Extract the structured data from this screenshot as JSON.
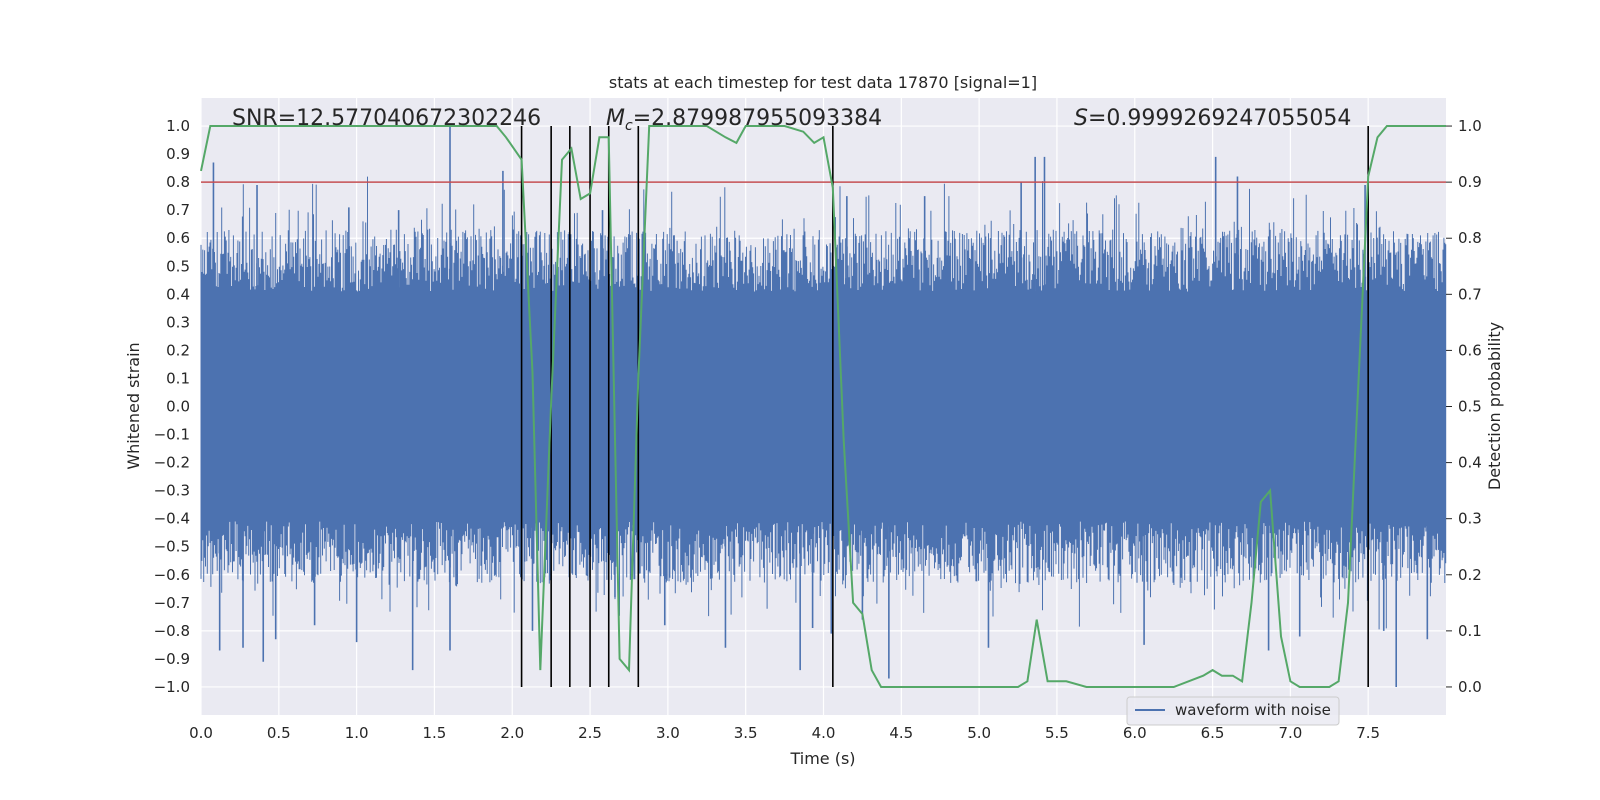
{
  "chart_data": {
    "type": "line",
    "title": "stats at each timestep for test data 17870 [signal=1]",
    "xlabel": "Time (s)",
    "ylabel": "Whitened strain",
    "y2label": "Detection probability",
    "xlim": [
      0.0,
      8.0
    ],
    "ylim": [
      -1.1,
      1.1
    ],
    "y2lim": [
      -0.05,
      1.05
    ],
    "xticks": [
      "0.0",
      "0.5",
      "1.0",
      "1.5",
      "2.0",
      "2.5",
      "3.0",
      "3.5",
      "4.0",
      "4.5",
      "5.0",
      "5.5",
      "6.0",
      "6.5",
      "7.0",
      "7.5"
    ],
    "yticks": [
      "1.0",
      "0.9",
      "0.8",
      "0.7",
      "0.6",
      "0.5",
      "0.4",
      "0.3",
      "0.2",
      "0.1",
      "0.0",
      "-0.1",
      "-0.2",
      "-0.3",
      "-0.4",
      "-0.5",
      "-0.6",
      "-0.7",
      "-0.8",
      "-0.9",
      "-1.0"
    ],
    "y2ticks": [
      "1.0",
      "0.9",
      "0.8",
      "0.7",
      "0.6",
      "0.5",
      "0.4",
      "0.3",
      "0.2",
      "0.1",
      "0.0"
    ],
    "grid": true,
    "legend": {
      "placement": "lower-right",
      "entries": [
        "waveform with noise"
      ]
    },
    "annotations": {
      "snr": "SNR=12.577040672302246",
      "mc_symbol": "M",
      "mc_sub": "c",
      "mc_value": "=2.879987955093384",
      "s_symbol": "S",
      "s_value": "=0.9999269247055054"
    },
    "threshold": {
      "y2": 0.9,
      "color": "#c44e52"
    },
    "detection_times": [
      2.06,
      2.25,
      2.37,
      2.5,
      2.62,
      2.81,
      4.06,
      7.5
    ],
    "waveform": {
      "name": "waveform with noise",
      "color": "#4c72b0",
      "core_amplitude": 0.38,
      "spikes": [
        {
          "x": 0.08,
          "y": 0.87
        },
        {
          "x": 0.12,
          "y": -0.87
        },
        {
          "x": 0.27,
          "y": -0.86
        },
        {
          "x": 0.36,
          "y": 0.79
        },
        {
          "x": 0.4,
          "y": -0.91
        },
        {
          "x": 0.48,
          "y": -0.83
        },
        {
          "x": 0.73,
          "y": -0.78
        },
        {
          "x": 0.95,
          "y": 0.71
        },
        {
          "x": 1.0,
          "y": -0.84
        },
        {
          "x": 1.27,
          "y": 0.7
        },
        {
          "x": 1.36,
          "y": -0.94
        },
        {
          "x": 1.6,
          "y": 1.0
        },
        {
          "x": 1.6,
          "y": -0.87
        },
        {
          "x": 1.94,
          "y": 0.84
        },
        {
          "x": 2.13,
          "y": -0.8
        },
        {
          "x": 2.58,
          "y": 0.7
        },
        {
          "x": 2.66,
          "y": -0.68
        },
        {
          "x": 2.98,
          "y": -0.78
        },
        {
          "x": 3.37,
          "y": -0.86
        },
        {
          "x": 3.85,
          "y": -0.94
        },
        {
          "x": 3.93,
          "y": -0.79
        },
        {
          "x": 4.05,
          "y": -0.81
        },
        {
          "x": 4.15,
          "y": 0.75
        },
        {
          "x": 4.25,
          "y": -0.76
        },
        {
          "x": 4.42,
          "y": -0.97
        },
        {
          "x": 4.65,
          "y": 0.75
        },
        {
          "x": 5.06,
          "y": -0.86
        },
        {
          "x": 5.27,
          "y": 0.8
        },
        {
          "x": 5.36,
          "y": 0.89
        },
        {
          "x": 5.42,
          "y": 0.89
        },
        {
          "x": 6.06,
          "y": -0.85
        },
        {
          "x": 6.52,
          "y": 0.89
        },
        {
          "x": 6.66,
          "y": 0.82
        },
        {
          "x": 6.86,
          "y": -0.87
        },
        {
          "x": 7.06,
          "y": -0.82
        },
        {
          "x": 7.48,
          "y": 0.79
        },
        {
          "x": 7.6,
          "y": -0.8
        },
        {
          "x": 7.68,
          "y": -1.0
        },
        {
          "x": 7.88,
          "y": -0.83
        }
      ]
    },
    "detection_probability": {
      "color": "#55a868",
      "x": [
        0.0,
        0.06,
        0.25,
        0.5,
        1.0,
        1.5,
        1.75,
        1.9,
        1.96,
        2.06,
        2.13,
        2.18,
        2.25,
        2.32,
        2.38,
        2.44,
        2.5,
        2.56,
        2.62,
        2.69,
        2.75,
        2.81,
        2.88,
        2.94,
        3.0,
        3.25,
        3.37,
        3.44,
        3.5,
        3.56,
        3.62,
        3.75,
        3.87,
        3.94,
        4.0,
        4.06,
        4.13,
        4.19,
        4.25,
        4.31,
        4.37,
        4.44,
        4.5,
        4.75,
        5.0,
        5.25,
        5.31,
        5.37,
        5.44,
        5.5,
        5.56,
        5.69,
        5.81,
        6.0,
        6.25,
        6.44,
        6.5,
        6.56,
        6.63,
        6.69,
        6.75,
        6.81,
        6.87,
        6.94,
        7.0,
        7.06,
        7.12,
        7.25,
        7.31,
        7.37,
        7.44,
        7.5,
        7.56,
        7.62,
        7.75,
        8.0
      ],
      "y": [
        0.92,
        1.0,
        1.0,
        1.0,
        1.0,
        1.0,
        1.0,
        1.0,
        0.98,
        0.94,
        0.56,
        0.03,
        0.51,
        0.94,
        0.96,
        0.87,
        0.88,
        0.98,
        0.98,
        0.05,
        0.03,
        0.55,
        1.0,
        1.0,
        1.0,
        1.0,
        0.98,
        0.97,
        1.0,
        1.0,
        1.0,
        1.0,
        0.99,
        0.97,
        0.98,
        0.89,
        0.44,
        0.15,
        0.13,
        0.03,
        0.0,
        0.0,
        0.0,
        0.0,
        0.0,
        0.0,
        0.01,
        0.12,
        0.01,
        0.01,
        0.01,
        0.0,
        0.0,
        0.0,
        0.0,
        0.02,
        0.03,
        0.02,
        0.02,
        0.01,
        0.15,
        0.33,
        0.35,
        0.09,
        0.01,
        0.0,
        0.0,
        0.0,
        0.01,
        0.15,
        0.56,
        0.91,
        0.98,
        1.0,
        1.0,
        1.0
      ]
    }
  }
}
